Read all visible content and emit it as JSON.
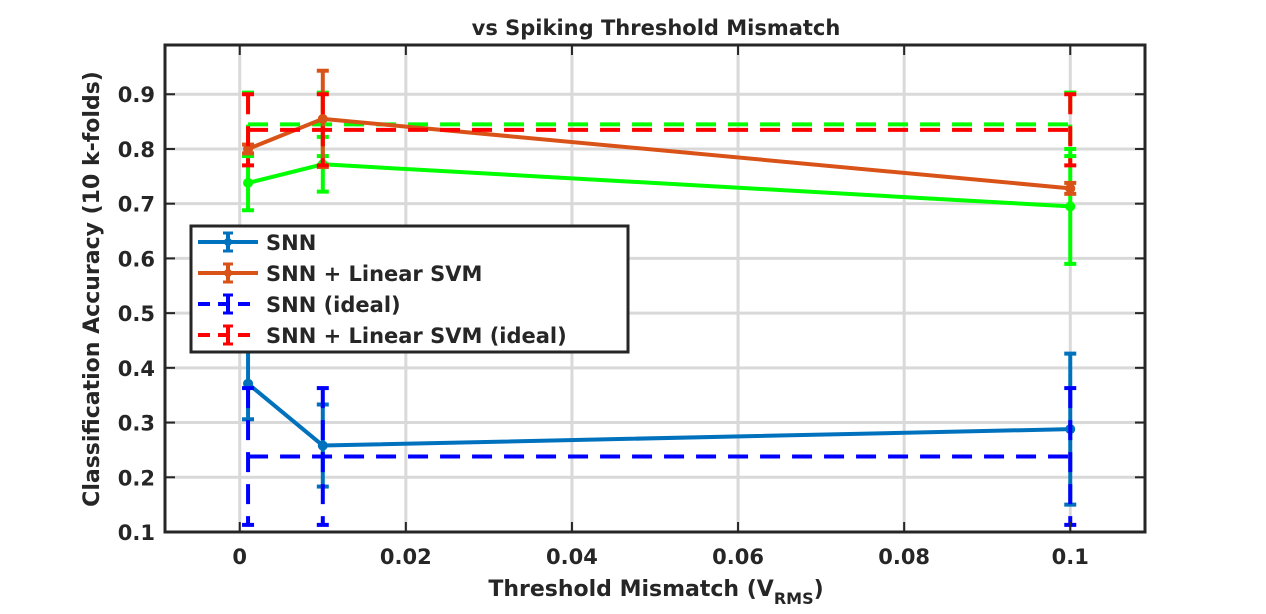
{
  "chart_data": {
    "type": "line",
    "title": "vs Spiking Threshold Mismatch",
    "xlabel": "Threshold Mismatch (V",
    "xlabel_sub": "RMS",
    "xlabel_close": ")",
    "ylabel": "Classification Accuracy (10 k-folds)",
    "xlim": [
      -0.009,
      0.109
    ],
    "ylim": [
      0.1,
      0.99
    ],
    "xticks": [
      0,
      0.02,
      0.04,
      0.06,
      0.08,
      0.1
    ],
    "xtick_labels": [
      "0",
      "0.02",
      "0.04",
      "0.06",
      "0.08",
      "0.1"
    ],
    "yticks": [
      0.1,
      0.2,
      0.3,
      0.4,
      0.5,
      0.6,
      0.7,
      0.8,
      0.9
    ],
    "ytick_labels": [
      "0.1",
      "0.2",
      "0.3",
      "0.4",
      "0.5",
      "0.6",
      "0.7",
      "0.8",
      "0.9"
    ],
    "grid": true,
    "legend_position": "center-left",
    "series": [
      {
        "name": "SNN",
        "color": "#0072bd",
        "style": "solid",
        "x": [
          0.001,
          0.01,
          0.1
        ],
        "y": [
          0.371,
          0.258,
          0.288
        ],
        "err": [
          0.065,
          0.075,
          0.138
        ]
      },
      {
        "name": "SNN + Linear SVM",
        "color": "#d95319",
        "style": "solid",
        "x": [
          0.001,
          0.01,
          0.1
        ],
        "y": [
          0.8,
          0.855,
          0.728
        ],
        "err": [
          0.008,
          0.088,
          0.01
        ]
      },
      {
        "name": "SNN (ideal)",
        "color": "#0000ff",
        "style": "dashed",
        "x": [
          0.001,
          0.01,
          0.1
        ],
        "y": [
          0.238,
          0.238,
          0.238
        ],
        "err": [
          0.125,
          0.125,
          0.125
        ]
      },
      {
        "name": "SNN + Linear SVM (ideal)",
        "color": "#ff0000",
        "style": "dashed",
        "x": [
          0.001,
          0.01,
          0.1
        ],
        "y": [
          0.835,
          0.835,
          0.835
        ],
        "err": [
          0.065,
          0.065,
          0.065
        ]
      },
      {
        "color": "#00ff00",
        "style": "solid",
        "in_legend": false,
        "x": [
          0.001,
          0.01,
          0.1
        ],
        "y": [
          0.738,
          0.772,
          0.695
        ],
        "err": [
          0.05,
          0.05,
          0.105
        ]
      },
      {
        "color": "#00ff00",
        "style": "dashed",
        "in_legend": false,
        "x": [
          0.001,
          0.01,
          0.1
        ],
        "y": [
          0.845,
          0.845,
          0.845
        ],
        "err": [
          0.058,
          0.058,
          0.058
        ]
      }
    ]
  }
}
